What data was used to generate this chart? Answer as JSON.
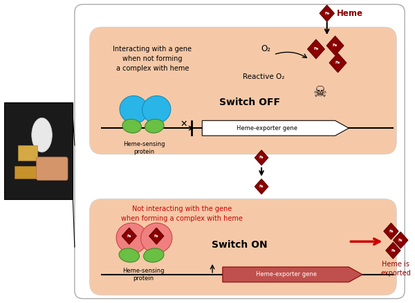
{
  "bg_color": "#ffffff",
  "panel_color": "#f5c9a8",
  "heme_diamond_color": "#8b0000",
  "border_color": "#aaaaaa",
  "top_panel": {
    "text1": "Interacting with a gene\nwhen not forming\na complex with heme",
    "text1_color": "#000000",
    "switch_text": "Switch OFF",
    "reactive_o2": "Reactive O₂",
    "o2_label": "O₂",
    "gene_label": "Heme-exporter gene",
    "protein_label": "Heme-sensing\nprotein"
  },
  "bottom_panel": {
    "text1": "Not interacting with the gene\nwhen forming a complex with heme",
    "text1_color": "#cc0000",
    "switch_text": "Switch ON",
    "gene_label": "Heme-exporter gene",
    "protein_label": "Heme-sensing\nprotein",
    "heme_exported": "Heme is\nexported"
  }
}
